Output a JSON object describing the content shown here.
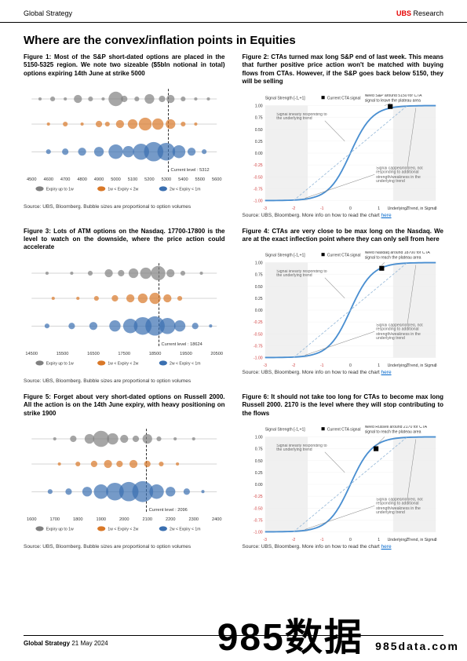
{
  "header": {
    "left": "Global Strategy",
    "brand": "UBS",
    "right_suffix": " Research"
  },
  "title": "Where are the convex/inflation points in Equities",
  "footer": {
    "label": "Global Strategy",
    "date": "21 May 2024"
  },
  "watermark": {
    "big": "985数据",
    "small": "985data.com"
  },
  "figs": [
    {
      "title": "Figure 1: Most of the S&P short-dated options are placed in the 5150-5325 region. We note two sizeable ($5bln notional in total) options expiring 14th June at strike 5000",
      "source": "Source: UBS, Bloomberg. Bubble sizes are proportional to option volumes"
    },
    {
      "title": "Figure 2: CTAs turned max long S&P end of last week. This means that further positive price action won't be matched with buying flows from CTAs. However, if the S&P goes back below 5150, they will be selling",
      "source": "Source: UBS, Bloomberg. More info on how to read the chart ",
      "link": "here"
    },
    {
      "title": "Figure 3: Lots of ATM options on the Nasdaq. 17700-17800 is the level to watch on the downside, where the price action could accelerate",
      "source": "Source: UBS, Bloomberg. Bubble sizes are proportional to option volumes"
    },
    {
      "title": "Figure 4: CTAs are very close to be max long on the Nasdaq. We are at the exact inflection point where they can only sell from here",
      "source": "Source: UBS, Bloomberg. More info on how to read the chart ",
      "link": "here"
    },
    {
      "title": "Figure 5: Forget about very short-dated options on Russell 2000. All the action is on the 14th June expiry, with heavy positioning on strike 1900",
      "source": "Source: UBS, Bloomberg. Bubble sizes are proportional to option volumes"
    },
    {
      "title": "Figure 6: It should not take too long for CTAs to become max long Russell 2000. 2170 is the level where they will stop contributing to the flows",
      "source": "Source: UBS, Bloomberg. More info on how to read the chart ",
      "link": "here"
    }
  ],
  "bubble": {
    "colors": {
      "row1": "#808080",
      "row2": "#d97828",
      "row3": "#3a6fb0",
      "mid": "#999",
      "dash": "#000"
    },
    "legend": [
      "Expiry up to 1w",
      "1w < Expiry < 2w",
      "2w < Expiry < 1m"
    ],
    "charts": [
      {
        "xmin": 4500,
        "xmax": 5600,
        "ticks": [
          4500,
          4600,
          4700,
          4800,
          4900,
          5000,
          5100,
          5200,
          5300,
          5400,
          5500,
          5600
        ],
        "current_label": "Current level : 5312",
        "current": 5312,
        "rows": [
          [
            [
              4550,
              2
            ],
            [
              4625,
              3
            ],
            [
              4700,
              2
            ],
            [
              4775,
              5
            ],
            [
              4850,
              3
            ],
            [
              4925,
              2
            ],
            [
              5000,
              9
            ],
            [
              5050,
              4
            ],
            [
              5125,
              3
            ],
            [
              5200,
              6
            ],
            [
              5275,
              4
            ],
            [
              5325,
              5
            ],
            [
              5400,
              3
            ],
            [
              5475,
              2
            ],
            [
              5550,
              2
            ]
          ],
          [
            [
              4600,
              2
            ],
            [
              4700,
              3
            ],
            [
              4800,
              2
            ],
            [
              4900,
              4
            ],
            [
              4950,
              3
            ],
            [
              5025,
              5
            ],
            [
              5100,
              6
            ],
            [
              5175,
              8
            ],
            [
              5250,
              7
            ],
            [
              5325,
              6
            ],
            [
              5400,
              3
            ],
            [
              5475,
              2
            ]
          ],
          [
            [
              4600,
              3
            ],
            [
              4700,
              4
            ],
            [
              4800,
              5
            ],
            [
              4900,
              6
            ],
            [
              5000,
              9
            ],
            [
              5075,
              7
            ],
            [
              5150,
              10
            ],
            [
              5225,
              12
            ],
            [
              5300,
              11
            ],
            [
              5375,
              8
            ],
            [
              5450,
              5
            ],
            [
              5525,
              3
            ]
          ]
        ]
      },
      {
        "xmin": 14500,
        "xmax": 20500,
        "ticks": [
          14500,
          15500,
          16500,
          17500,
          18500,
          19500,
          20500
        ],
        "current_label": "Current level : 18624",
        "current": 18624,
        "rows": [
          [
            [
              15000,
              2
            ],
            [
              15800,
              2
            ],
            [
              16400,
              3
            ],
            [
              17000,
              5
            ],
            [
              17400,
              4
            ],
            [
              17800,
              6
            ],
            [
              18200,
              7
            ],
            [
              18600,
              9
            ],
            [
              19000,
              5
            ],
            [
              19400,
              3
            ],
            [
              20000,
              2
            ]
          ],
          [
            [
              15200,
              2
            ],
            [
              16000,
              2
            ],
            [
              16600,
              3
            ],
            [
              17200,
              4
            ],
            [
              17700,
              5
            ],
            [
              18100,
              6
            ],
            [
              18500,
              7
            ],
            [
              18900,
              5
            ],
            [
              19300,
              3
            ]
          ],
          [
            [
              15000,
              3
            ],
            [
              15800,
              4
            ],
            [
              16500,
              5
            ],
            [
              17200,
              7
            ],
            [
              17700,
              9
            ],
            [
              18100,
              11
            ],
            [
              18500,
              12
            ],
            [
              18900,
              10
            ],
            [
              19300,
              7
            ],
            [
              19800,
              4
            ],
            [
              20300,
              2
            ]
          ]
        ]
      },
      {
        "xmin": 1600,
        "xmax": 2400,
        "ticks": [
          1600,
          1700,
          1800,
          1900,
          2000,
          2100,
          2200,
          2300,
          2400
        ],
        "current_label": "Current level : 2096",
        "current": 2096,
        "rows": [
          [
            [
              1700,
              2
            ],
            [
              1780,
              4
            ],
            [
              1850,
              6
            ],
            [
              1900,
              10
            ],
            [
              1950,
              7
            ],
            [
              2000,
              5
            ],
            [
              2050,
              4
            ],
            [
              2100,
              6
            ],
            [
              2150,
              3
            ],
            [
              2220,
              2
            ],
            [
              2300,
              2
            ]
          ],
          [
            [
              1720,
              2
            ],
            [
              1800,
              3
            ],
            [
              1870,
              4
            ],
            [
              1930,
              5
            ],
            [
              1980,
              4
            ],
            [
              2040,
              5
            ],
            [
              2100,
              4
            ],
            [
              2160,
              3
            ],
            [
              2230,
              2
            ]
          ],
          [
            [
              1680,
              3
            ],
            [
              1760,
              4
            ],
            [
              1840,
              6
            ],
            [
              1900,
              9
            ],
            [
              1960,
              11
            ],
            [
              2020,
              12
            ],
            [
              2080,
              13
            ],
            [
              2140,
              9
            ],
            [
              2200,
              6
            ],
            [
              2270,
              4
            ],
            [
              2340,
              2
            ]
          ]
        ]
      }
    ]
  },
  "cta": {
    "colors": {
      "line": "#4a8fd1",
      "dashed": "#95b8d8",
      "shade": "#f0f0f0",
      "arrow": "#888",
      "text": "#666",
      "red": "#d04040"
    },
    "yticks": [
      -1.0,
      -0.75,
      -0.5,
      -0.25,
      0.0,
      0.25,
      0.5,
      0.75,
      1.0
    ],
    "xticks": [
      -3,
      -2,
      -1,
      0,
      1,
      2,
      3
    ],
    "ylabel": "Signal Strength [-1,+1]",
    "xlabel": "Underlying Trend, in Sigma",
    "legend": "Current CTA signal",
    "annot_top": "Signal linearly responding to the underlying trend",
    "annot_bot": "Signal capped/floored, not responding to additional strength/weakness in the underlying trend",
    "charts": [
      {
        "topnote": "Need S&P around 5150 for CTA signal to leave the plateau area",
        "marker_x": 1.4,
        "marker_y": 0.98
      },
      {
        "topnote": "Need Nasdaq around 18700 for CTA signal to reach the plateau area",
        "marker_x": 1.1,
        "marker_y": 0.88
      },
      {
        "topnote": "Need Russell around 2170 for CTA signal to reach the plateau area",
        "marker_x": 0.9,
        "marker_y": 0.75
      }
    ]
  }
}
